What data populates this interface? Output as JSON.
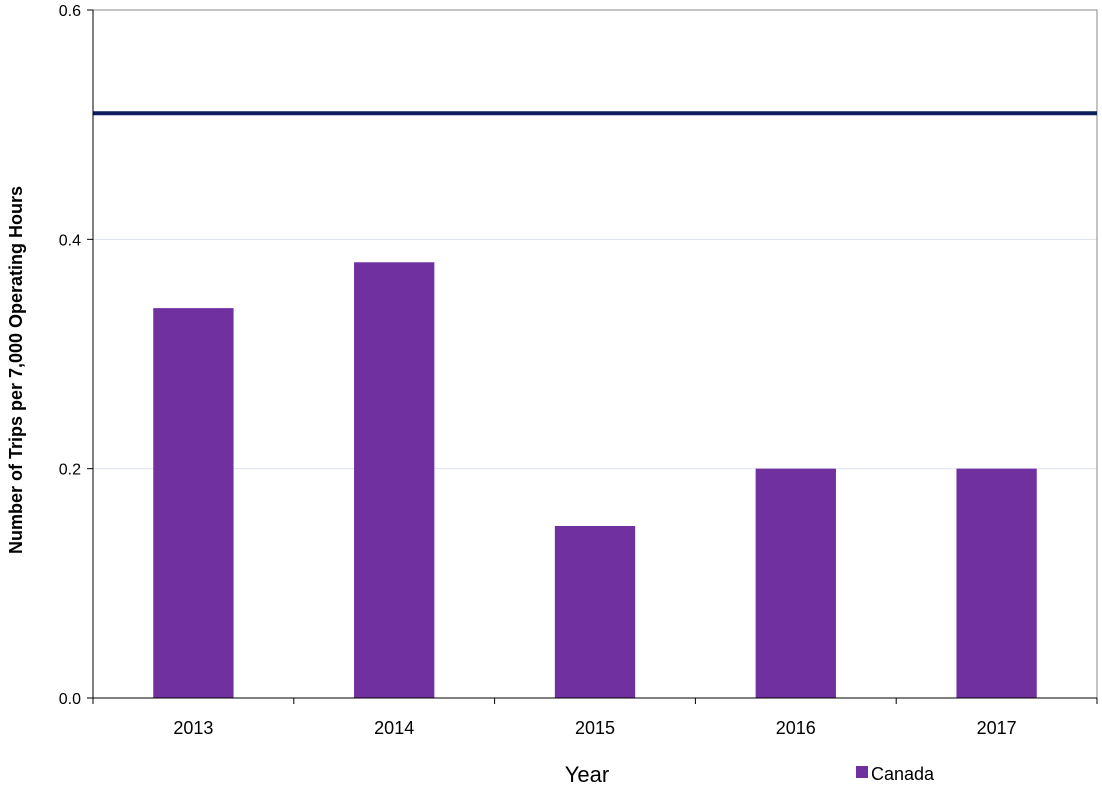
{
  "chart_data": {
    "type": "bar",
    "categories": [
      "2013",
      "2014",
      "2015",
      "2016",
      "2017"
    ],
    "series": [
      {
        "name": "Canada",
        "values": [
          0.34,
          0.38,
          0.15,
          0.2,
          0.2
        ],
        "color": "#7030a0"
      }
    ],
    "reference_line": {
      "value": 0.51,
      "color": "#0c1f5c"
    },
    "xlabel": "Year",
    "ylabel": "Number of Trips per 7,000 Operating Hours",
    "ylim": [
      0,
      0.6
    ],
    "yticks": [
      "0.0",
      "0.2",
      "0.4",
      "0.6"
    ],
    "grid": true,
    "legend": {
      "placement": "bottom-right"
    }
  }
}
